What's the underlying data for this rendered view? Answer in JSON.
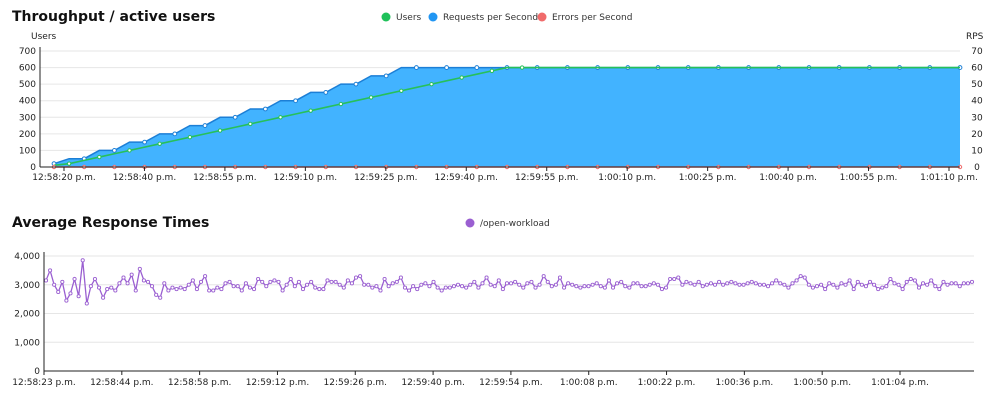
{
  "charts": [
    {
      "title": "Throughput / active users",
      "type": "area",
      "y_left_label": "Users",
      "y_right_label": "RPS",
      "y_left_ticks": [
        "0",
        "100",
        "200",
        "300",
        "400",
        "500",
        "600",
        "700"
      ],
      "y_right_ticks": [
        "0",
        "10",
        "20",
        "30",
        "40",
        "50",
        "60",
        "70"
      ],
      "y_left_range": [
        0,
        700
      ],
      "y_right_range": [
        0,
        70
      ],
      "x_ticks": [
        "12:58:20 p.m.",
        "12:58:40 p.m.",
        "12:58:55 p.m.",
        "12:59:10 p.m.",
        "12:59:25 p.m.",
        "12:59:40 p.m.",
        "12:59:55 p.m.",
        "1:00:10 p.m.",
        "1:00:25 p.m.",
        "1:00:40 p.m.",
        "1:00:55 p.m.",
        "1:01:10 p.m."
      ],
      "legend": [
        {
          "name": "Users",
          "color": "#1fc15a"
        },
        {
          "name": "Requests per Second",
          "color": "#2196f3"
        },
        {
          "name": "Errors per Second",
          "color": "#f06b6b"
        }
      ],
      "users": [
        10,
        20,
        40,
        60,
        80,
        100,
        120,
        140,
        160,
        180,
        200,
        220,
        240,
        260,
        280,
        300,
        320,
        340,
        360,
        380,
        400,
        420,
        440,
        460,
        480,
        500,
        520,
        540,
        560,
        580,
        600,
        600,
        600,
        600,
        600,
        600,
        600,
        600,
        600,
        600,
        600,
        600,
        600,
        600,
        600,
        600,
        600,
        600,
        600,
        600,
        600,
        600,
        600,
        600,
        600,
        600,
        600,
        600,
        600,
        600,
        600
      ],
      "rps": [
        2,
        5,
        5,
        10,
        10,
        15,
        15,
        20,
        20,
        25,
        25,
        30,
        30,
        35,
        35,
        40,
        40,
        45,
        45,
        50,
        50,
        55,
        55,
        60,
        60,
        60,
        60,
        60,
        60,
        60,
        60,
        60,
        60,
        60,
        60,
        60,
        60,
        60,
        60,
        60,
        60,
        60,
        60,
        60,
        60,
        60,
        60,
        60,
        60,
        60,
        60,
        60,
        60,
        60,
        60,
        60,
        60,
        60,
        60,
        60,
        60
      ],
      "errors_per_second": [
        0,
        0,
        0,
        0,
        0,
        0,
        0,
        0,
        0,
        0,
        0,
        0,
        0,
        0,
        0,
        0,
        0,
        0,
        0,
        0,
        0,
        0,
        0,
        0,
        0,
        0,
        0,
        0,
        0,
        0,
        0,
        0,
        0,
        0,
        0,
        0,
        0,
        0,
        0,
        0,
        0,
        0,
        0,
        0,
        0,
        0,
        0,
        0,
        0,
        0,
        0,
        0,
        0,
        0,
        0,
        0,
        0,
        0,
        0,
        0,
        0
      ],
      "colors": {
        "rps_fill": "#42b3ff",
        "rps_line": "#1c7fd6",
        "users_line": "#27c05a",
        "errors_line": "#ef6a6a"
      }
    },
    {
      "title": "Average Response Times",
      "type": "line",
      "y_ticks": [
        "0",
        "1,000",
        "2,000",
        "3,000",
        "4,000"
      ],
      "y_range": [
        0,
        4000
      ],
      "x_ticks": [
        "12:58:23 p.m.",
        "12:58:44 p.m.",
        "12:58:58 p.m.",
        "12:59:12 p.m.",
        "12:59:26 p.m.",
        "12:59:40 p.m.",
        "12:59:54 p.m.",
        "1:00:08 p.m.",
        "1:00:22 p.m.",
        "1:00:36 p.m.",
        "1:00:50 p.m.",
        "1:01:04 p.m."
      ],
      "legend": [
        {
          "name": "/open-workload",
          "color": "#9a5fd1"
        }
      ],
      "values": [
        3150,
        3500,
        3000,
        2750,
        3100,
        2450,
        2700,
        3200,
        2600,
        3850,
        2350,
        2950,
        3200,
        2900,
        2550,
        2850,
        2900,
        2800,
        3050,
        3250,
        3050,
        3350,
        2800,
        3550,
        3150,
        3100,
        2950,
        2650,
        2550,
        3050,
        2800,
        2900,
        2850,
        2900,
        2850,
        3000,
        3150,
        2850,
        3100,
        3300,
        2800,
        2800,
        2900,
        2850,
        3050,
        3100,
        2950,
        2950,
        2800,
        3050,
        2900,
        2850,
        3200,
        3100,
        2950,
        3100,
        3150,
        3100,
        2800,
        3000,
        3200,
        2950,
        3100,
        2850,
        3000,
        3100,
        2900,
        2850,
        2850,
        3150,
        3100,
        3100,
        3000,
        2900,
        3150,
        3050,
        3250,
        3300,
        3000,
        3000,
        2900,
        2950,
        2800,
        3200,
        2950,
        3050,
        3100,
        3250,
        2900,
        2800,
        2950,
        2850,
        3000,
        3050,
        2950,
        3100,
        2900,
        2800,
        2900,
        2900,
        2950,
        3000,
        2950,
        2900,
        3000,
        3100,
        2900,
        3050,
        3250,
        3000,
        2950,
        3150,
        2850,
        3050,
        3050,
        3100,
        3000,
        2900,
        3050,
        3100,
        2900,
        3000,
        3300,
        3100,
        2950,
        3000,
        3250,
        2900,
        3050,
        3000,
        2950,
        2900,
        2950,
        2950,
        3000,
        3050,
        2950,
        2900,
        3150,
        2900,
        3050,
        3100,
        2950,
        2900,
        3050,
        3050,
        2950,
        2950,
        3000,
        3050,
        3000,
        2850,
        2900,
        3200,
        3200,
        3250,
        3000,
        3100,
        3050,
        3000,
        3100,
        2950,
        3000,
        3050,
        3000,
        3100,
        3000,
        3050,
        3100,
        3050,
        3000,
        3000,
        3050,
        3100,
        3050,
        3000,
        3000,
        2950,
        3050,
        3150,
        3050,
        3000,
        2900,
        3050,
        3150,
        3300,
        3250,
        3000,
        2900,
        2950,
        3000,
        2850,
        3050,
        3000,
        2900,
        3050,
        3000,
        3150,
        2850,
        3100,
        3000,
        2950,
        3100,
        3000,
        2850,
        2900,
        2950,
        3200,
        3050,
        3000,
        2850,
        3100,
        3200,
        3150,
        2900,
        3050,
        3000,
        3150,
        2950,
        2850,
        3100,
        3000,
        3050,
        3050,
        2950,
        3050,
        3050,
        3100
      ]
    }
  ]
}
